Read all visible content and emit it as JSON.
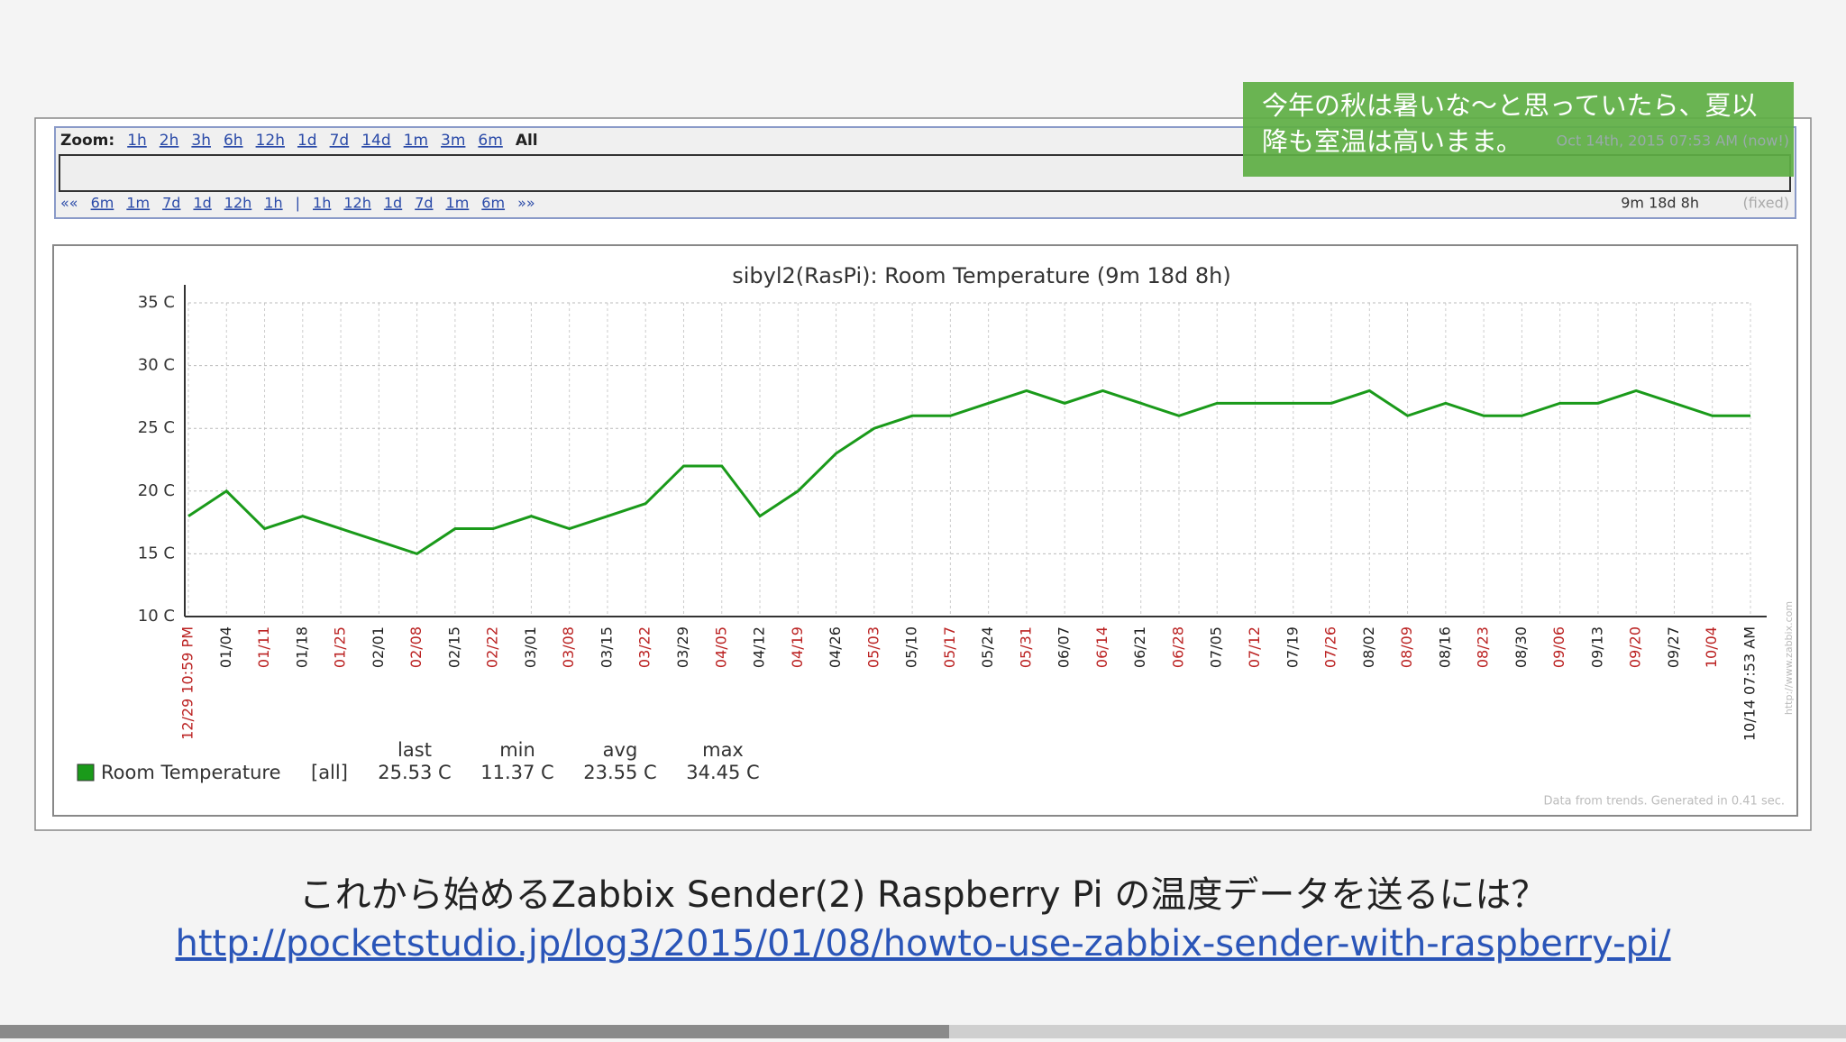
{
  "zoom": {
    "label": "Zoom:",
    "options": [
      "1h",
      "2h",
      "3h",
      "6h",
      "12h",
      "1d",
      "7d",
      "14d",
      "1m",
      "3m",
      "6m",
      "All"
    ],
    "nav": [
      "««",
      "6m",
      "1m",
      "7d",
      "1d",
      "12h",
      "1h",
      "|",
      "1h",
      "12h",
      "1d",
      "7d",
      "1m",
      "6m",
      "»»"
    ],
    "range": "Oct 14th, 2015 07:53 AM (now!)",
    "period": "9m 18d 8h",
    "fixed": "(fixed)"
  },
  "chart_data": {
    "type": "line",
    "title": "sibyl2(RasPi): Room Temperature (9m 18d 8h)",
    "categories": [
      "12/29 10:59 PM",
      "01/04",
      "01/11",
      "01/18",
      "01/25",
      "02/01",
      "02/08",
      "02/15",
      "02/22",
      "03/01",
      "03/08",
      "03/15",
      "03/22",
      "03/29",
      "04/05",
      "04/12",
      "04/19",
      "04/26",
      "05/03",
      "05/10",
      "05/17",
      "05/24",
      "05/31",
      "06/07",
      "06/14",
      "06/21",
      "06/28",
      "07/05",
      "07/12",
      "07/19",
      "07/26",
      "08/02",
      "08/09",
      "08/16",
      "08/23",
      "08/30",
      "09/06",
      "09/13",
      "09/20",
      "09/27",
      "10/04",
      "10/14 07:53 AM"
    ],
    "series": [
      {
        "name": "Room Temperature",
        "color": "#1a9a1a",
        "values": [
          18,
          20,
          17,
          18,
          17,
          16,
          15,
          17,
          17,
          18,
          17,
          18,
          19,
          22,
          22,
          18,
          20,
          23,
          25,
          26,
          26,
          27,
          28,
          27,
          28,
          27,
          26,
          27,
          27,
          27,
          27,
          28,
          26,
          27,
          26,
          26,
          27,
          27,
          28,
          27,
          26,
          26
        ]
      }
    ],
    "ylim": [
      10,
      35
    ],
    "yticks": [
      {
        "value": 10,
        "label": "10 C"
      },
      {
        "value": 15,
        "label": "15 C"
      },
      {
        "value": 20,
        "label": "20 C"
      },
      {
        "value": 25,
        "label": "25 C"
      },
      {
        "value": 30,
        "label": "30 C"
      },
      {
        "value": 35,
        "label": "35 C"
      }
    ],
    "grid": true,
    "stats": {
      "headers": [
        "last",
        "min",
        "avg",
        "max"
      ],
      "scope": "[all]",
      "values": [
        "25.53 C",
        "11.37 C",
        "23.55 C",
        "34.45 C"
      ]
    },
    "footer": "Data from trends. Generated in 0.41 sec.",
    "watermark": "http://www.zabbix.com"
  },
  "callout": [
    "今年の秋は暑いな〜と思っていたら、夏以",
    "降も室温は高いまま。"
  ],
  "caption": {
    "title": "これから始めるZabbix Sender(2) Raspberry Pi の温度データを送るには？",
    "url": "http://pocketstudio.jp/log3/2015/01/08/howto-use-zabbix-sender-with-raspberry-pi/"
  }
}
